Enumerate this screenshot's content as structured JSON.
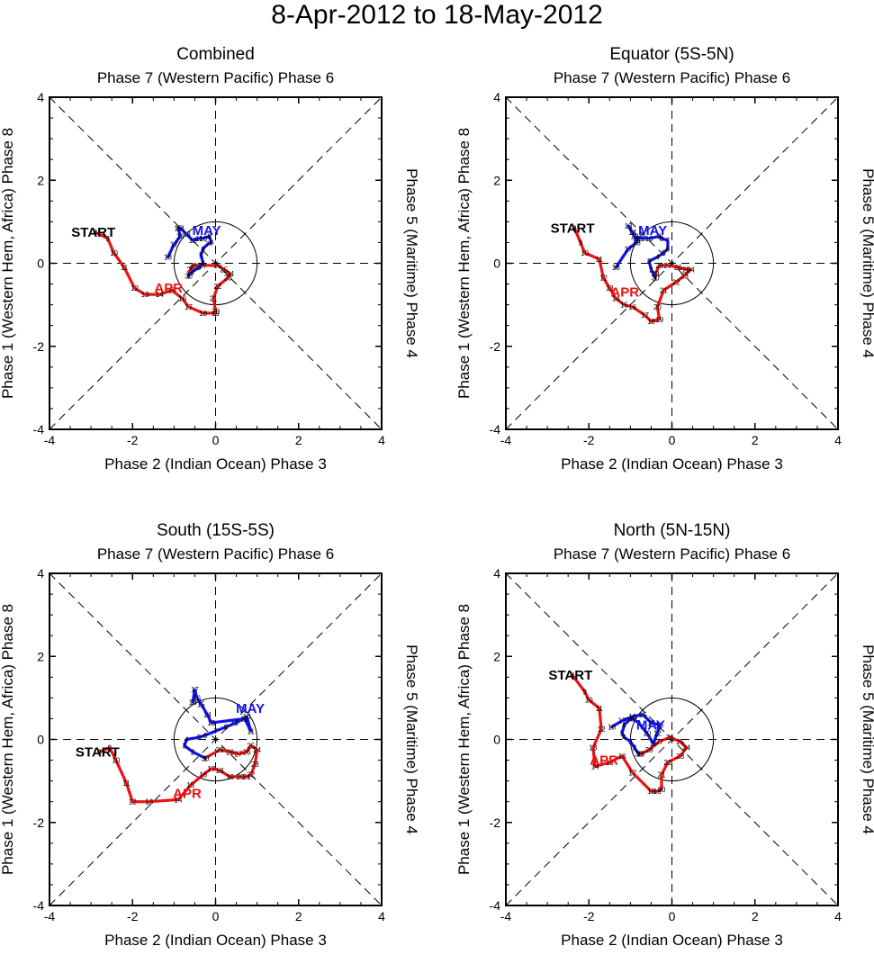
{
  "title": "8-Apr-2012 to 18-May-2012",
  "labels": {
    "top": "Phase 7 (Western Pacific) Phase 6",
    "bottom": "Phase 2 (Indian Ocean) Phase 3",
    "left": "Phase 1 (Western Hem, Africa) Phase 8",
    "right": "Phase 5 (Maritime) Phase 4",
    "start": "START",
    "april": "APR",
    "may": "MAY"
  },
  "colors": {
    "april": "#ee1111",
    "may": "#1111ee",
    "axes": "#000000"
  },
  "chart_data": [
    {
      "type": "line",
      "title": "Combined",
      "xlabel": "Phase 2 (Indian Ocean) Phase 3",
      "ylabel": "Phase 1 (Western Hem, Africa) Phase 8",
      "xlim": [
        -4,
        4
      ],
      "ylim": [
        -4,
        4
      ],
      "xticks": [
        -4,
        -2,
        0,
        2,
        4
      ],
      "yticks": [
        -4,
        -2,
        0,
        2,
        4
      ],
      "unit_circle": 1,
      "series": [
        {
          "name": "APR",
          "color": "#ee1111",
          "days": [
            8,
            9,
            10,
            11,
            12,
            13,
            14,
            15,
            16,
            17,
            18,
            19,
            20,
            21,
            22,
            23,
            24,
            25,
            26,
            27,
            28,
            29,
            30
          ],
          "x": [
            -2.9,
            -2.6,
            -2.45,
            -2.2,
            -1.95,
            -1.7,
            -1.35,
            -1.05,
            -0.8,
            -0.65,
            -0.3,
            0.0,
            0.0,
            -0.05,
            0.05,
            0.3,
            0.35,
            0.2,
            0.05,
            -0.3,
            -0.55,
            -0.6,
            -0.65
          ],
          "y": [
            0.75,
            0.6,
            0.25,
            -0.1,
            -0.6,
            -0.75,
            -0.75,
            -0.65,
            -0.85,
            -1.05,
            -1.2,
            -1.2,
            -1.15,
            -0.85,
            -0.55,
            -0.35,
            -0.25,
            -0.15,
            -0.05,
            -0.05,
            -0.05,
            -0.15,
            -0.3
          ]
        },
        {
          "name": "MAY",
          "color": "#1111ee",
          "days": [
            1,
            2,
            3,
            4,
            5,
            6,
            7,
            8,
            9,
            10,
            11,
            12,
            13,
            14,
            15,
            16,
            17,
            18
          ],
          "x": [
            -0.65,
            -0.55,
            -0.4,
            -0.3,
            -0.35,
            -0.3,
            -0.2,
            -0.1,
            -0.15,
            -0.3,
            -0.4,
            -0.55,
            -0.7,
            -0.85,
            -0.9,
            -0.85,
            -1.0,
            -1.15
          ],
          "y": [
            -0.3,
            -0.2,
            -0.1,
            0.0,
            0.2,
            0.35,
            0.45,
            0.5,
            0.65,
            0.6,
            0.6,
            0.55,
            0.7,
            0.85,
            0.85,
            0.65,
            0.45,
            0.15
          ]
        }
      ]
    },
    {
      "type": "line",
      "title": "Equator (5S-5N)",
      "xlabel": "Phase 2 (Indian Ocean) Phase 3",
      "ylabel": "Phase 1 (Western Hem, Africa) Phase 8",
      "xlim": [
        -4,
        4
      ],
      "ylim": [
        -4,
        4
      ],
      "xticks": [
        -4,
        -2,
        0,
        2,
        4
      ],
      "yticks": [
        -4,
        -2,
        0,
        2,
        4
      ],
      "unit_circle": 1,
      "series": [
        {
          "name": "APR",
          "color": "#ee1111",
          "days": [
            8,
            9,
            10,
            11,
            12,
            13,
            14,
            15,
            16,
            17,
            18,
            19,
            20,
            21,
            22,
            23,
            24,
            25,
            26,
            27,
            28,
            29,
            30
          ],
          "x": [
            -2.35,
            -2.2,
            -2.1,
            -1.75,
            -1.65,
            -1.5,
            -1.35,
            -1.15,
            -0.95,
            -0.65,
            -0.5,
            -0.3,
            -0.35,
            -0.2,
            0.1,
            0.3,
            0.45,
            0.35,
            0.15,
            -0.1,
            -0.3,
            -0.4,
            -0.4
          ],
          "y": [
            0.85,
            0.5,
            0.25,
            0.1,
            -0.35,
            -0.6,
            -0.85,
            -1.0,
            -1.05,
            -1.25,
            -1.4,
            -1.35,
            -1.05,
            -0.65,
            -0.45,
            -0.3,
            -0.15,
            -0.15,
            -0.1,
            -0.05,
            -0.05,
            -0.25,
            -0.35
          ]
        },
        {
          "name": "MAY",
          "color": "#1111ee",
          "days": [
            1,
            2,
            3,
            4,
            5,
            6,
            7,
            8,
            9,
            10,
            11,
            12,
            13,
            14,
            15,
            16,
            17,
            18
          ],
          "x": [
            -0.4,
            -0.5,
            -0.55,
            -0.35,
            -0.2,
            -0.1,
            -0.1,
            -0.25,
            -0.3,
            -0.55,
            -0.75,
            -0.9,
            -1.05,
            -0.95,
            -0.85,
            -0.85,
            -1.05,
            -1.35
          ],
          "y": [
            -0.35,
            -0.15,
            0.05,
            0.15,
            0.25,
            0.35,
            0.55,
            0.6,
            0.65,
            0.6,
            0.6,
            0.65,
            0.9,
            0.75,
            0.55,
            0.5,
            0.35,
            -0.1
          ]
        }
      ]
    },
    {
      "type": "line",
      "title": "South (15S-5S)",
      "xlabel": "Phase 2 (Indian Ocean) Phase 3",
      "ylabel": "Phase 1 (Western Hem, Africa) Phase 8",
      "xlim": [
        -4,
        4
      ],
      "ylim": [
        -4,
        4
      ],
      "xticks": [
        -4,
        -2,
        0,
        2,
        4
      ],
      "yticks": [
        -4,
        -2,
        0,
        2,
        4
      ],
      "unit_circle": 1,
      "series": [
        {
          "name": "APR",
          "color": "#ee1111",
          "days": [
            8,
            9,
            10,
            11,
            12,
            13,
            14,
            15,
            16,
            17,
            18,
            19,
            20,
            21,
            22,
            23,
            24,
            25,
            26,
            27,
            28,
            29,
            30
          ],
          "x": [
            -2.8,
            -2.55,
            -2.4,
            -2.15,
            -2.0,
            -1.6,
            -0.9,
            -0.6,
            -0.3,
            -0.1,
            0.1,
            0.35,
            0.6,
            0.75,
            0.85,
            0.95,
            1.0,
            0.85,
            0.75,
            0.55,
            0.35,
            0.1,
            -0.25
          ],
          "y": [
            -0.3,
            -0.2,
            -0.5,
            -1.05,
            -1.5,
            -1.5,
            -1.45,
            -1.1,
            -0.85,
            -0.7,
            -0.75,
            -0.9,
            -0.9,
            -0.9,
            -0.85,
            -0.6,
            -0.25,
            -0.15,
            -0.3,
            -0.35,
            -0.3,
            -0.25,
            -0.45
          ]
        },
        {
          "name": "MAY",
          "color": "#1111ee",
          "days": [
            1,
            2,
            3,
            4,
            5,
            6,
            7,
            8,
            9,
            10,
            11,
            12,
            13,
            14,
            15,
            16,
            17,
            18
          ],
          "x": [
            -0.25,
            -0.55,
            -0.75,
            -0.7,
            -0.4,
            -0.25,
            0.0,
            0.25,
            0.5,
            0.75,
            0.85,
            0.7,
            -0.1,
            -0.2,
            -0.35,
            -0.45,
            -0.5,
            -0.55
          ],
          "y": [
            -0.45,
            -0.3,
            -0.15,
            0.0,
            0.05,
            0.1,
            0.2,
            0.3,
            0.4,
            0.55,
            0.2,
            0.5,
            0.4,
            0.6,
            0.85,
            1.0,
            1.2,
            0.9
          ]
        }
      ]
    },
    {
      "type": "line",
      "title": "North (5N-15N)",
      "xlabel": "Phase 2 (Indian Ocean) Phase 3",
      "ylabel": "Phase 1 (Western Hem, Africa) Phase 8",
      "xlim": [
        -4,
        4
      ],
      "ylim": [
        -4,
        4
      ],
      "xticks": [
        -4,
        -2,
        0,
        2,
        4
      ],
      "yticks": [
        -4,
        -2,
        0,
        2,
        4
      ],
      "unit_circle": 1,
      "series": [
        {
          "name": "APR",
          "color": "#ee1111",
          "days": [
            8,
            9,
            10,
            11,
            12,
            13,
            14,
            15,
            16,
            17,
            18,
            19,
            20,
            21,
            22,
            23,
            24,
            25,
            26,
            27,
            28,
            29,
            30
          ],
          "x": [
            -2.4,
            -2.1,
            -2.0,
            -1.75,
            -1.7,
            -1.9,
            -1.85,
            -1.5,
            -1.2,
            -0.95,
            -0.5,
            -0.35,
            -0.25,
            -0.25,
            -0.1,
            0.2,
            0.35,
            0.2,
            -0.05,
            -0.3,
            -0.55,
            -0.75,
            -0.8
          ],
          "y": [
            1.55,
            1.15,
            0.95,
            0.75,
            0.25,
            -0.2,
            -0.65,
            -0.55,
            -0.4,
            -0.8,
            -1.25,
            -1.25,
            -1.2,
            -0.85,
            -0.55,
            -0.4,
            -0.2,
            -0.05,
            0.05,
            -0.05,
            -0.25,
            -0.35,
            -0.35
          ]
        },
        {
          "name": "MAY",
          "color": "#1111ee",
          "days": [
            1,
            2,
            3,
            4,
            5,
            6,
            7,
            8,
            9,
            10,
            11,
            12,
            13,
            14,
            15,
            16,
            17,
            18
          ],
          "x": [
            -0.8,
            -0.9,
            -1.0,
            -1.15,
            -1.2,
            -1.15,
            -1.05,
            -0.95,
            -0.8,
            -0.6,
            -0.45,
            -0.35,
            -0.3,
            -0.5,
            -0.7,
            -0.95,
            -1.2,
            -1.45
          ],
          "y": [
            -0.35,
            -0.2,
            -0.05,
            0.05,
            0.15,
            0.35,
            0.45,
            0.5,
            0.4,
            0.15,
            -0.1,
            0.15,
            0.35,
            0.4,
            0.6,
            0.55,
            0.45,
            0.3
          ]
        }
      ]
    }
  ]
}
